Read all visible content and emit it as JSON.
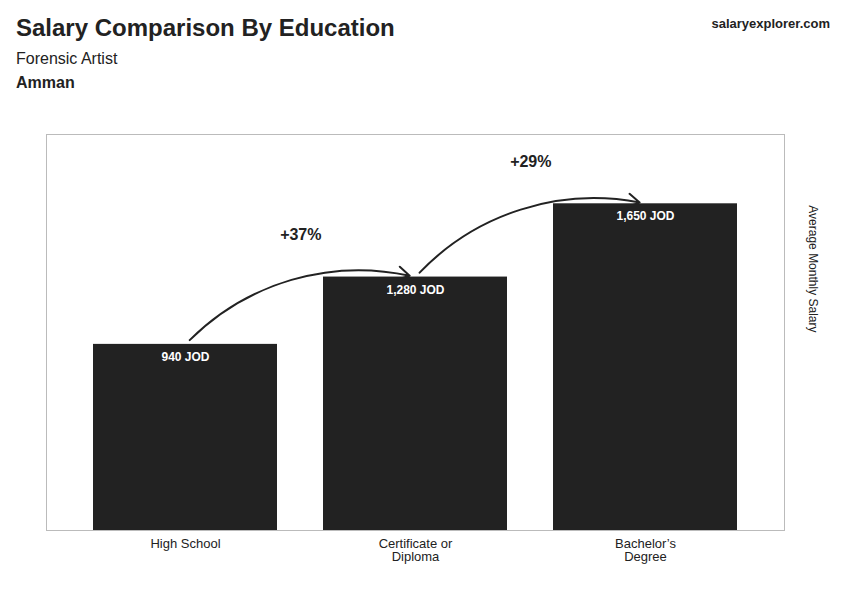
{
  "chart_data": {
    "type": "bar",
    "title": "Salary Comparison By Education",
    "subtitle": "Forensic Artist",
    "categories": [
      "High School",
      "Certificate or\nDiploma",
      "Bachelor’s\nDegree"
    ],
    "values": [
      940,
      1280,
      1650
    ],
    "value_labels": [
      "940 JOD",
      "1,280 JOD",
      "1,650 JOD"
    ],
    "data_labels": true,
    "ylabel": "Average Monthly Salary",
    "ylim": [
      0,
      2000
    ],
    "tick_labels": "x",
    "grid": false,
    "annotations": [
      {
        "text": "Amman"
      },
      {
        "text": "+37%",
        "from": "High School",
        "to": "Certificate or\nDiploma"
      },
      {
        "text": "+29%",
        "from": "Certificate or\nDiploma",
        "to": "Bachelor’s\nDegree"
      },
      {
        "text": "salaryexplorer.com"
      }
    ]
  }
}
